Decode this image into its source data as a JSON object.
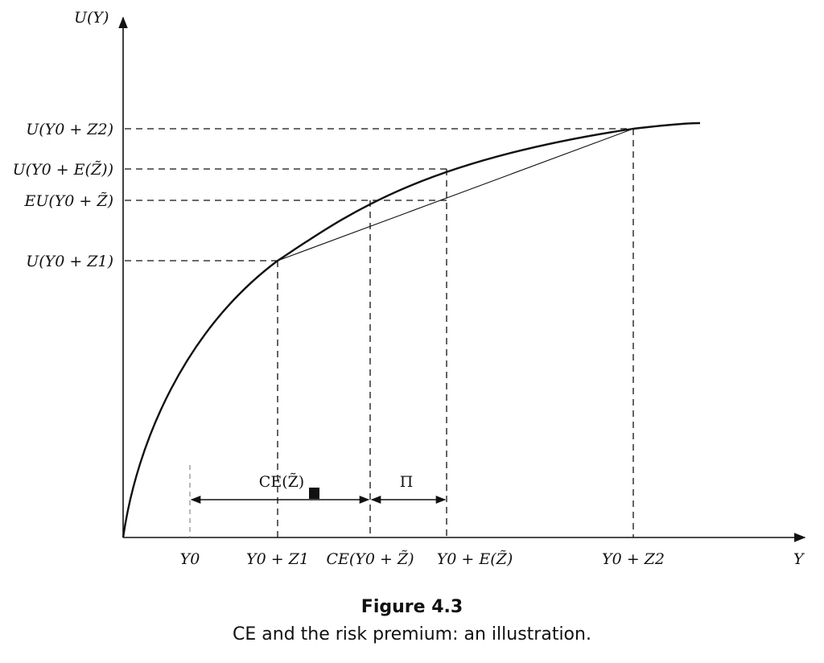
{
  "figure": {
    "y_axis_label": "U(Y)",
    "x_axis_label": "Y",
    "caption_title": "Figure 4.3",
    "caption_text": "CE and the risk premium: an illustration."
  },
  "y_ticks": {
    "u_y0_z2": "U(Y0 + Z2)",
    "u_y0_ez": "U(Y0 + E(Z̃))",
    "eu_y0_z": "EU(Y0 + Z̃)",
    "u_y0_z1": "U(Y0 + Z1)"
  },
  "x_ticks": {
    "y0": "Y0",
    "y0_z1": "Y0 + Z1",
    "ce_y0_z": "CE(Y0 + Z̃)",
    "y0_ez": "Y0 + E(Z̃)",
    "y0_z2": "Y0 + Z2"
  },
  "brackets": {
    "ce": "CE(Z̃)",
    "pi": "Π"
  }
}
